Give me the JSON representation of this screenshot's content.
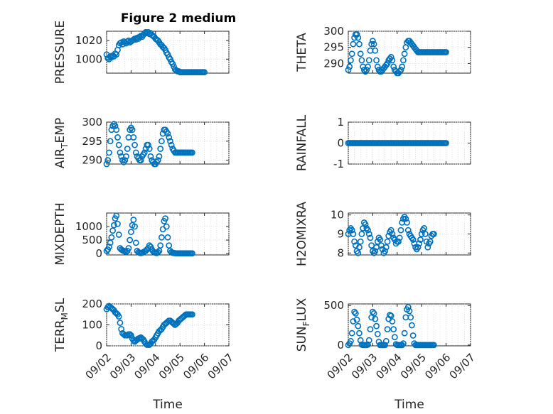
{
  "figure": {
    "title": "Figure 2 medium"
  },
  "chart_data": [
    {
      "type": "scatter",
      "ylabel": "PRESSURE",
      "ylim": [
        985,
        1030
      ],
      "yticks": [
        1000,
        1020
      ],
      "ytick_labels": [
        "1000",
        "1020"
      ],
      "xlim": [
        0,
        5
      ],
      "x": [
        0.0,
        0.05,
        0.1,
        0.15,
        0.2,
        0.25,
        0.3,
        0.35,
        0.4,
        0.45,
        0.5,
        0.55,
        0.6,
        0.65,
        0.7,
        0.75,
        0.8,
        0.85,
        0.9,
        0.95,
        1.0,
        1.05,
        1.1,
        1.15,
        1.2,
        1.25,
        1.3,
        1.35,
        1.4,
        1.45,
        1.5,
        1.55,
        1.6,
        1.65,
        1.7,
        1.75,
        1.8,
        1.85,
        1.9,
        1.95,
        2.0,
        2.05,
        2.1,
        2.15,
        2.2,
        2.25,
        2.3,
        2.35,
        2.4,
        2.45,
        2.5,
        2.55,
        2.6,
        2.65,
        2.7,
        2.75,
        2.8,
        2.85,
        2.9,
        2.95,
        3.0,
        3.05,
        3.1,
        3.15,
        3.2,
        3.25,
        3.3,
        3.35,
        3.4,
        3.45,
        3.5,
        3.55,
        3.6,
        3.65,
        3.7,
        3.75,
        3.8,
        3.85,
        3.9,
        3.95,
        4.0
      ],
      "y": [
        1005,
        1001,
        1000,
        1003,
        1002,
        1004,
        1003,
        1006,
        1005,
        1010,
        1015,
        1017,
        1018,
        1016,
        1019,
        1018,
        1017,
        1019,
        1020,
        1018,
        1019,
        1020,
        1021,
        1022,
        1021,
        1023,
        1022,
        1024,
        1025,
        1024,
        1026,
        1028,
        1029,
        1028,
        1029,
        1027,
        1028,
        1026,
        1025,
        1024,
        1022,
        1021,
        1020,
        1018,
        1016,
        1015,
        1013,
        1012,
        1010,
        1007,
        1005,
        1002,
        1000,
        997,
        995,
        992,
        989,
        988,
        987,
        987,
        986,
        986,
        986,
        986,
        986,
        986,
        986,
        986,
        986,
        986,
        986,
        986,
        986,
        986,
        986,
        986,
        986,
        986,
        986,
        986,
        986
      ]
    },
    {
      "type": "scatter",
      "ylabel": "THETA",
      "ylim": [
        287,
        300
      ],
      "yticks": [
        290,
        295,
        300
      ],
      "ytick_labels": [
        "290",
        "295",
        "300"
      ],
      "xlim": [
        0,
        5
      ],
      "x": [
        0.0,
        0.05,
        0.1,
        0.15,
        0.2,
        0.25,
        0.3,
        0.35,
        0.4,
        0.45,
        0.5,
        0.55,
        0.6,
        0.65,
        0.7,
        0.75,
        0.8,
        0.85,
        0.9,
        0.95,
        1.0,
        1.05,
        1.1,
        1.15,
        1.2,
        1.25,
        1.3,
        1.35,
        1.4,
        1.45,
        1.5,
        1.55,
        1.6,
        1.65,
        1.7,
        1.75,
        1.8,
        1.85,
        1.9,
        1.95,
        2.0,
        2.05,
        2.1,
        2.15,
        2.2,
        2.25,
        2.3,
        2.35,
        2.4,
        2.45,
        2.5,
        2.55,
        2.6,
        2.65,
        2.7,
        2.75,
        2.8,
        2.85,
        2.9,
        2.95,
        3.0,
        3.05,
        3.1,
        3.15,
        3.2,
        3.25,
        3.3,
        3.35,
        3.4,
        3.45,
        3.5,
        3.55,
        3.6,
        3.65,
        3.7,
        3.75,
        3.8,
        3.85,
        3.9,
        3.95,
        4.0
      ],
      "y": [
        288,
        289,
        291,
        293,
        296,
        298,
        299,
        299,
        298,
        296,
        293,
        291,
        289,
        288,
        287.5,
        288,
        289,
        291,
        294,
        296,
        297,
        296,
        294,
        291,
        289,
        288,
        287.5,
        287.5,
        288,
        288.5,
        289,
        289.5,
        290,
        291,
        291.5,
        292,
        291,
        289,
        288,
        287.5,
        287,
        287,
        287.5,
        288,
        289,
        291,
        293,
        295,
        296.5,
        297,
        297,
        296.5,
        296,
        295.5,
        295,
        294.5,
        294,
        293.5,
        293.5,
        293.5,
        293.5,
        293.5,
        293.5,
        293.5,
        293.5,
        293.5,
        293.5,
        293.5,
        293.5,
        293.5,
        293.5,
        293.5,
        293.5,
        293.5,
        293.5,
        293.5,
        293.5,
        293.5,
        293.5,
        293.5,
        293.5
      ]
    },
    {
      "type": "scatter",
      "ylabel": "AIR",
      "ylabel_sub": "T",
      "ylabel_rest": "EMP",
      "ylim": [
        289,
        300
      ],
      "yticks": [
        290,
        295,
        300
      ],
      "ytick_labels": [
        "290",
        "295",
        "300"
      ],
      "xlim": [
        0,
        5
      ],
      "x": [
        0.0,
        0.05,
        0.1,
        0.15,
        0.2,
        0.25,
        0.3,
        0.35,
        0.4,
        0.45,
        0.5,
        0.55,
        0.6,
        0.65,
        0.7,
        0.75,
        0.8,
        0.85,
        0.9,
        0.95,
        1.0,
        1.05,
        1.1,
        1.15,
        1.2,
        1.25,
        1.3,
        1.35,
        1.4,
        1.45,
        1.5,
        1.55,
        1.6,
        1.65,
        1.7,
        1.75,
        1.8,
        1.85,
        1.9,
        1.95,
        2.0,
        2.05,
        2.1,
        2.15,
        2.2,
        2.25,
        2.3,
        2.35,
        2.4,
        2.45,
        2.5,
        2.55,
        2.6,
        2.65,
        2.7,
        2.75,
        2.8,
        2.85,
        2.9,
        2.95,
        3.0,
        3.05,
        3.1,
        3.15,
        3.2,
        3.25,
        3.3,
        3.35,
        3.4,
        3.45,
        3.5
      ],
      "y": [
        289,
        290,
        292,
        295,
        298,
        299,
        299.5,
        299,
        298,
        296,
        294,
        292,
        291,
        290,
        289.5,
        290,
        291,
        293,
        296,
        298,
        298.5,
        298,
        296,
        294,
        292,
        291,
        290.5,
        290,
        290,
        291,
        291.5,
        292,
        293,
        294,
        294,
        293,
        291,
        290,
        289.5,
        289,
        289,
        289.5,
        290,
        291,
        293,
        295,
        297,
        298,
        298,
        297.5,
        297,
        296,
        295,
        294,
        293,
        292.5,
        292,
        292,
        292,
        292,
        292,
        292,
        292,
        292,
        292,
        292,
        292,
        292,
        292,
        292,
        292
      ]
    },
    {
      "type": "scatter",
      "ylabel": "RAINFALL",
      "ylim": [
        -1,
        1
      ],
      "yticks": [
        -1,
        0,
        1
      ],
      "ytick_labels": [
        "-1",
        "0",
        "1"
      ],
      "xlim": [
        0,
        5
      ],
      "x": [
        0.0,
        0.05,
        0.1,
        0.15,
        0.2,
        0.25,
        0.3,
        0.35,
        0.4,
        0.45,
        0.5,
        0.55,
        0.6,
        0.65,
        0.7,
        0.75,
        0.8,
        0.85,
        0.9,
        0.95,
        1.0,
        1.05,
        1.1,
        1.15,
        1.2,
        1.25,
        1.3,
        1.35,
        1.4,
        1.45,
        1.5,
        1.55,
        1.6,
        1.65,
        1.7,
        1.75,
        1.8,
        1.85,
        1.9,
        1.95,
        2.0,
        2.05,
        2.1,
        2.15,
        2.2,
        2.25,
        2.3,
        2.35,
        2.4,
        2.45,
        2.5,
        2.55,
        2.6,
        2.65,
        2.7,
        2.75,
        2.8,
        2.85,
        2.9,
        2.95,
        3.0,
        3.05,
        3.1,
        3.15,
        3.2,
        3.25,
        3.3,
        3.35,
        3.4,
        3.45,
        3.5,
        3.55,
        3.6,
        3.65,
        3.7,
        3.75,
        3.8,
        3.85,
        3.9,
        3.95,
        4.0
      ],
      "y": [
        0,
        0,
        0,
        0,
        0,
        0,
        0,
        0,
        0,
        0,
        0,
        0,
        0,
        0,
        0,
        0,
        0,
        0,
        0,
        0,
        0,
        0,
        0,
        0,
        0,
        0,
        0,
        0,
        0,
        0,
        0,
        0,
        0,
        0,
        0,
        0,
        0,
        0,
        0,
        0,
        0,
        0,
        0,
        0,
        0,
        0,
        0,
        0,
        0,
        0,
        0,
        0,
        0,
        0,
        0,
        0,
        0,
        0,
        0,
        0,
        0,
        0,
        0,
        0,
        0,
        0,
        0,
        0,
        0,
        0,
        0,
        0,
        0,
        0,
        0,
        0,
        0,
        0,
        0,
        0,
        0
      ]
    },
    {
      "type": "scatter",
      "ylabel": "MIXDEPTH",
      "ylim": [
        -50,
        1500
      ],
      "yticks": [
        0,
        500,
        1000
      ],
      "ytick_labels": [
        "0",
        "500",
        "1000"
      ],
      "xlim": [
        0,
        5
      ],
      "x": [
        0.0,
        0.05,
        0.1,
        0.15,
        0.2,
        0.25,
        0.3,
        0.35,
        0.4,
        0.45,
        0.5,
        0.55,
        0.6,
        0.65,
        0.7,
        0.75,
        0.8,
        0.85,
        0.9,
        0.95,
        1.0,
        1.05,
        1.1,
        1.15,
        1.2,
        1.25,
        1.3,
        1.35,
        1.4,
        1.45,
        1.5,
        1.55,
        1.6,
        1.65,
        1.7,
        1.75,
        1.8,
        1.85,
        1.9,
        1.95,
        2.0,
        2.05,
        2.1,
        2.15,
        2.2,
        2.25,
        2.3,
        2.35,
        2.4,
        2.45,
        2.5,
        2.55,
        2.6,
        2.65,
        2.7,
        2.75,
        2.8,
        2.85,
        2.9,
        2.95,
        3.0,
        3.05,
        3.1,
        3.15,
        3.2,
        3.25,
        3.3,
        3.35,
        3.4,
        3.45,
        3.5
      ],
      "y": [
        100,
        150,
        250,
        400,
        600,
        850,
        1050,
        1300,
        1400,
        1100,
        700,
        200,
        150,
        120,
        100,
        80,
        60,
        100,
        200,
        500,
        800,
        1050,
        1250,
        1000,
        400,
        100,
        50,
        30,
        20,
        30,
        50,
        80,
        100,
        150,
        200,
        300,
        250,
        150,
        80,
        50,
        30,
        20,
        50,
        100,
        300,
        600,
        900,
        1200,
        1300,
        1000,
        600,
        300,
        100,
        50,
        30,
        20,
        15,
        10,
        10,
        10,
        10,
        10,
        10,
        10,
        10,
        10,
        10,
        10,
        10,
        10,
        10
      ]
    },
    {
      "type": "scatter",
      "ylabel": "H2OMIXRA",
      "ylim": [
        7.9,
        10.1
      ],
      "yticks": [
        8,
        9,
        10
      ],
      "ytick_labels": [
        "8",
        "9",
        "10"
      ],
      "xlim": [
        0,
        5
      ],
      "x": [
        0.0,
        0.05,
        0.1,
        0.15,
        0.2,
        0.25,
        0.3,
        0.35,
        0.4,
        0.45,
        0.5,
        0.55,
        0.6,
        0.65,
        0.7,
        0.75,
        0.8,
        0.85,
        0.9,
        0.95,
        1.0,
        1.05,
        1.1,
        1.15,
        1.2,
        1.25,
        1.3,
        1.35,
        1.4,
        1.45,
        1.5,
        1.55,
        1.6,
        1.65,
        1.7,
        1.75,
        1.8,
        1.85,
        1.9,
        1.95,
        2.0,
        2.05,
        2.1,
        2.15,
        2.2,
        2.25,
        2.3,
        2.35,
        2.4,
        2.45,
        2.5,
        2.55,
        2.6,
        2.65,
        2.7,
        2.75,
        2.8,
        2.85,
        2.9,
        2.95,
        3.0,
        3.05,
        3.1,
        3.15,
        3.2,
        3.25,
        3.3,
        3.35,
        3.4,
        3.45,
        3.5
      ],
      "y": [
        9.0,
        9.2,
        9.3,
        9.2,
        9.0,
        8.6,
        8.4,
        8.1,
        8.0,
        8.3,
        8.6,
        9.0,
        9.3,
        9.6,
        9.5,
        9.3,
        9.2,
        9.0,
        8.8,
        8.4,
        8.1,
        8.0,
        8.1,
        8.3,
        8.6,
        8.8,
        8.7,
        8.4,
        8.2,
        8.0,
        8.1,
        8.3,
        8.6,
        8.9,
        9.1,
        9.2,
        9.0,
        8.8,
        8.7,
        8.5,
        8.6,
        8.6,
        8.8,
        9.2,
        9.6,
        9.8,
        9.9,
        9.8,
        9.6,
        9.2,
        9.0,
        8.9,
        8.8,
        8.7,
        8.5,
        8.3,
        8.2,
        8.3,
        8.5,
        8.7,
        9.0,
        9.2,
        9.3,
        9.0,
        8.6,
        8.3,
        8.5,
        8.6,
        8.9,
        9.0,
        9.0
      ]
    },
    {
      "type": "scatter",
      "ylabel": "TERR",
      "ylabel_sub": "M",
      "ylabel_rest": "SL",
      "ylim": [
        0,
        200
      ],
      "yticks": [
        0,
        100,
        200
      ],
      "ytick_labels": [
        "0",
        "100",
        "200"
      ],
      "xlim": [
        0,
        5
      ],
      "x": [
        0.0,
        0.05,
        0.1,
        0.15,
        0.2,
        0.25,
        0.3,
        0.35,
        0.4,
        0.45,
        0.5,
        0.55,
        0.6,
        0.65,
        0.7,
        0.75,
        0.8,
        0.85,
        0.9,
        0.95,
        1.0,
        1.05,
        1.1,
        1.15,
        1.2,
        1.25,
        1.3,
        1.35,
        1.4,
        1.45,
        1.5,
        1.55,
        1.6,
        1.65,
        1.7,
        1.75,
        1.8,
        1.85,
        1.9,
        1.95,
        2.0,
        2.05,
        2.1,
        2.15,
        2.2,
        2.25,
        2.3,
        2.35,
        2.4,
        2.45,
        2.5,
        2.55,
        2.6,
        2.65,
        2.7,
        2.75,
        2.8,
        2.85,
        2.9,
        2.95,
        3.0,
        3.05,
        3.1,
        3.15,
        3.2,
        3.25,
        3.3,
        3.35,
        3.4,
        3.45,
        3.5
      ],
      "y": [
        175,
        185,
        190,
        185,
        180,
        175,
        170,
        160,
        155,
        150,
        140,
        110,
        80,
        60,
        55,
        50,
        50,
        50,
        55,
        55,
        50,
        35,
        25,
        20,
        25,
        30,
        35,
        35,
        40,
        35,
        30,
        20,
        10,
        5,
        5,
        5,
        10,
        20,
        25,
        30,
        40,
        50,
        60,
        70,
        75,
        80,
        90,
        100,
        105,
        110,
        115,
        120,
        120,
        115,
        110,
        105,
        100,
        105,
        110,
        120,
        125,
        130,
        135,
        140,
        145,
        150,
        150,
        150,
        150,
        150,
        150
      ]
    },
    {
      "type": "scatter",
      "ylabel": "SUN",
      "ylabel_sub": "F",
      "ylabel_rest": "LUX",
      "ylim": [
        -10,
        520
      ],
      "yticks": [
        0,
        500
      ],
      "ytick_labels": [
        "0",
        "500"
      ],
      "xlim": [
        0,
        5
      ],
      "xticks": [
        0,
        1,
        2,
        3,
        4,
        5
      ],
      "xtick_labels": [
        "09/02",
        "09/03",
        "09/04",
        "09/05",
        "09/06",
        "09/07"
      ],
      "xlabel": "Time",
      "x": [
        0.0,
        0.05,
        0.1,
        0.15,
        0.2,
        0.25,
        0.3,
        0.35,
        0.4,
        0.45,
        0.5,
        0.55,
        0.6,
        0.65,
        0.7,
        0.75,
        0.8,
        0.85,
        0.9,
        0.95,
        1.0,
        1.05,
        1.1,
        1.15,
        1.2,
        1.25,
        1.3,
        1.35,
        1.4,
        1.45,
        1.5,
        1.55,
        1.6,
        1.65,
        1.7,
        1.75,
        1.8,
        1.85,
        1.9,
        1.95,
        2.0,
        2.05,
        2.1,
        2.15,
        2.2,
        2.25,
        2.3,
        2.35,
        2.4,
        2.45,
        2.5,
        2.55,
        2.6,
        2.65,
        2.7,
        2.75,
        2.8,
        2.85,
        2.9,
        2.95,
        3.0,
        3.05,
        3.1,
        3.15,
        3.2,
        3.25,
        3.3,
        3.35,
        3.4,
        3.45,
        3.5
      ],
      "y": [
        0,
        20,
        50,
        150,
        300,
        420,
        400,
        320,
        240,
        150,
        60,
        5,
        0,
        0,
        0,
        0,
        5,
        60,
        200,
        350,
        420,
        400,
        330,
        240,
        140,
        40,
        0,
        0,
        0,
        0,
        0,
        50,
        200,
        330,
        380,
        370,
        300,
        200,
        100,
        10,
        0,
        0,
        0,
        0,
        0,
        20,
        150,
        350,
        450,
        480,
        430,
        350,
        250,
        120,
        20,
        0,
        0,
        0,
        0,
        0,
        0,
        0,
        0,
        0,
        0,
        0,
        0,
        0,
        0,
        0,
        0
      ]
    }
  ]
}
